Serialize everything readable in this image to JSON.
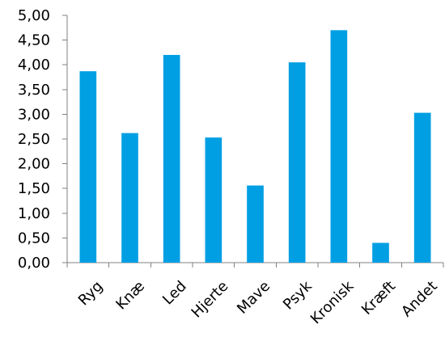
{
  "chart_data": {
    "type": "bar",
    "title": "",
    "xlabel": "",
    "ylabel": "",
    "categories": [
      "Ryg",
      "Knæ",
      "Led",
      "Hjerte",
      "Mave",
      "Psyk",
      "Kronisk",
      "Kræft",
      "Andet"
    ],
    "values": [
      3.87,
      2.62,
      4.2,
      2.53,
      1.56,
      4.05,
      4.7,
      0.4,
      3.03
    ],
    "ylim": [
      0,
      5
    ],
    "yticks": [
      0,
      0.5,
      1,
      1.5,
      2,
      2.5,
      3,
      3.5,
      4,
      4.5,
      5
    ],
    "ytick_labels": [
      "0,00",
      "0,50",
      "1,00",
      "1,50",
      "2,00",
      "2,50",
      "3,00",
      "3,50",
      "4,00",
      "4,50",
      "5,00"
    ],
    "grid": false,
    "legend": "none",
    "bar_color": "#009fe3",
    "axis_color": "#808080",
    "text_color": "#000000"
  }
}
